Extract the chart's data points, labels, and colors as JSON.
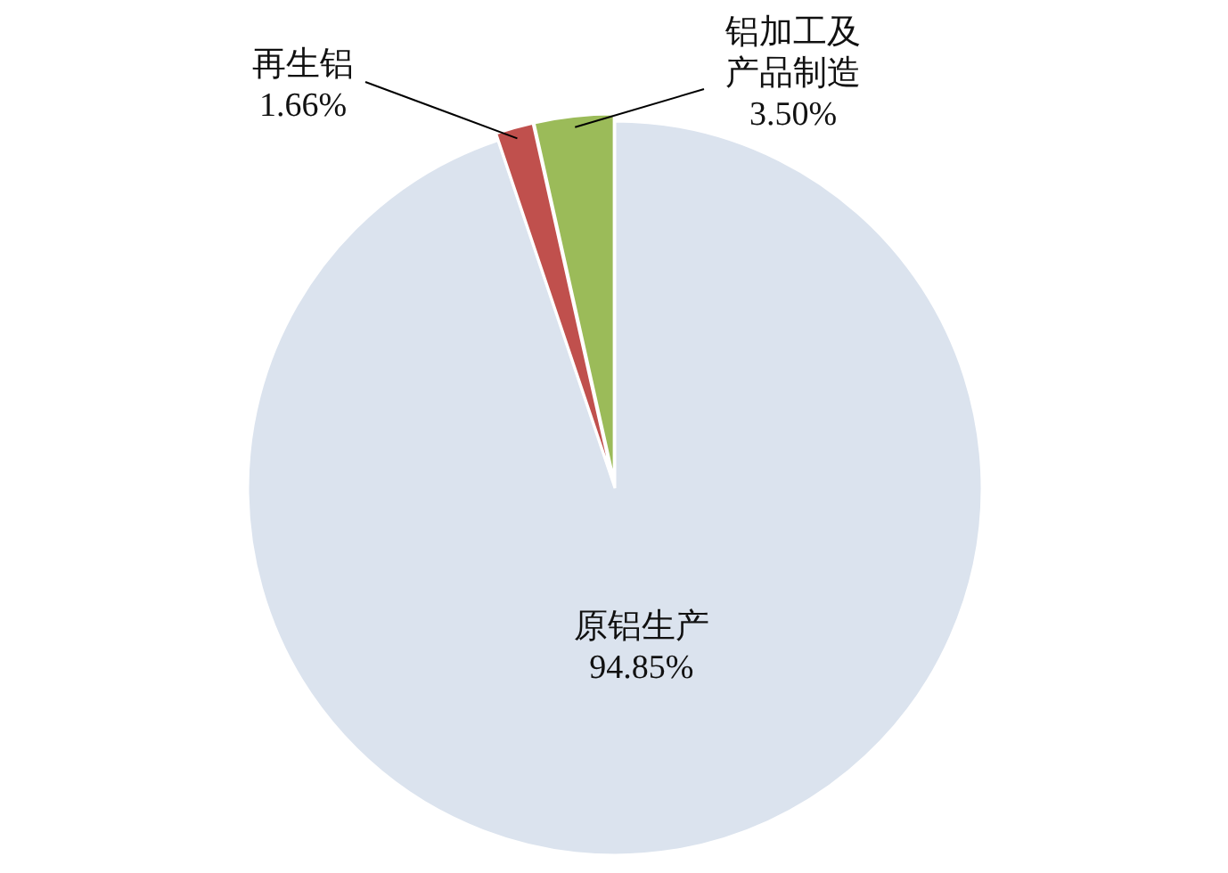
{
  "chart_data": {
    "type": "pie",
    "categories": [
      "原铝生产",
      "再生铝",
      "铝加工及产品制造"
    ],
    "values": [
      94.85,
      1.66,
      3.5
    ],
    "colors": [
      "#dbe3ee",
      "#c0504d",
      "#9bbb59"
    ],
    "value_labels": [
      "94.85%",
      "1.66%",
      "3.50%"
    ]
  }
}
